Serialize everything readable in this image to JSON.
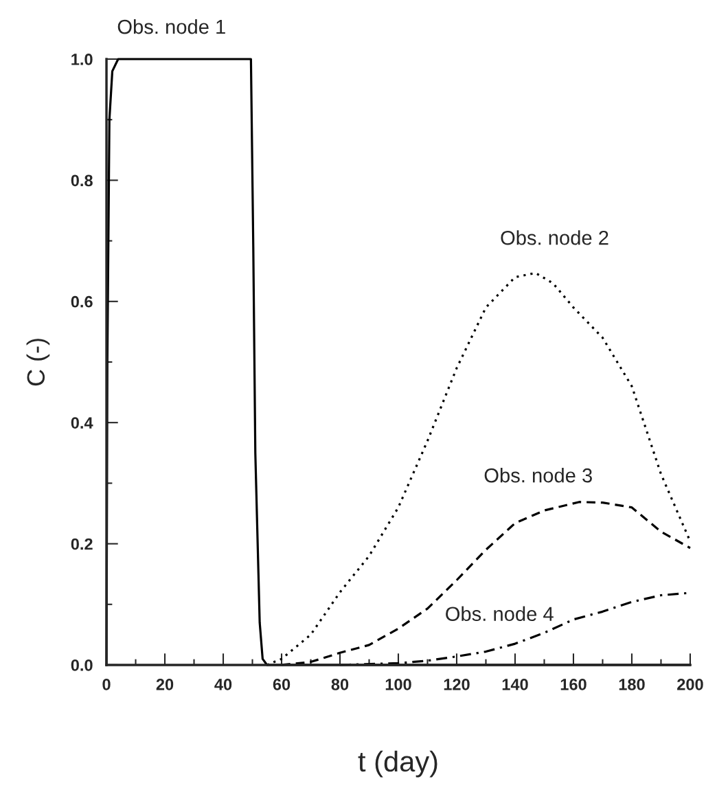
{
  "chart_data": {
    "type": "line",
    "xlabel": "t (day)",
    "ylabel": "C (-)",
    "xlim": [
      0,
      200
    ],
    "ylim": [
      0,
      1.0
    ],
    "xticks": [
      0,
      {
        "value": 10,
        "label": null
      },
      20,
      {
        "value": 30,
        "label": null
      },
      40,
      {
        "value": 50,
        "label": null
      },
      60,
      {
        "value": 70,
        "label": null
      },
      80,
      {
        "value": 90,
        "label": null
      },
      100,
      {
        "value": 110,
        "label": null
      },
      120,
      {
        "value": 130,
        "label": null
      },
      140,
      {
        "value": 150,
        "label": null
      },
      160,
      {
        "value": 170,
        "label": null
      },
      180,
      {
        "value": 190,
        "label": null
      },
      200
    ],
    "yticks": [
      {
        "value": 0,
        "label": "0.0"
      },
      {
        "value": 0.1,
        "label": null
      },
      0.2,
      {
        "value": 0.3,
        "label": null
      },
      0.4,
      {
        "value": 0.5,
        "label": null
      },
      0.6,
      {
        "value": 0.7,
        "label": null
      },
      0.8,
      {
        "value": 0.9,
        "label": null
      },
      {
        "value": 1.0,
        "label": "1.0"
      }
    ],
    "grid": false,
    "legend": false,
    "marker": "none",
    "series": [
      {
        "name": "Obs. node 1",
        "color": "#000000",
        "line_style": "solid",
        "x": [
          0,
          0.3,
          1,
          2,
          4,
          49.5,
          50.3,
          51,
          52.5,
          53.5,
          55,
          200
        ],
        "values": [
          0,
          0.5,
          0.9,
          0.98,
          1.0,
          1.0,
          0.69,
          0.35,
          0.07,
          0.01,
          0,
          0
        ]
      },
      {
        "name": "Obs. node 2",
        "color": "#000000",
        "line_style": "dotted",
        "x": [
          55,
          60,
          70,
          80,
          90,
          100,
          110,
          120,
          130,
          140,
          147,
          153,
          160,
          170,
          180,
          190,
          200
        ],
        "values": [
          0,
          0.01,
          0.05,
          0.12,
          0.18,
          0.26,
          0.37,
          0.49,
          0.59,
          0.64,
          0.647,
          0.63,
          0.59,
          0.54,
          0.46,
          0.315,
          0.204
        ]
      },
      {
        "name": "Obs. node 3",
        "color": "#000000",
        "line_style": "dashed",
        "x": [
          60,
          70,
          80,
          90,
          100,
          110,
          120,
          130,
          140,
          150,
          162,
          170,
          180,
          190,
          200
        ],
        "values": [
          0,
          0.005,
          0.02,
          0.033,
          0.06,
          0.093,
          0.14,
          0.19,
          0.234,
          0.255,
          0.269,
          0.268,
          0.26,
          0.22,
          0.193
        ]
      },
      {
        "name": "Obs. node 4",
        "color": "#000000",
        "line_style": "dashdot",
        "x": [
          80,
          100,
          110,
          120,
          130,
          140,
          150,
          160,
          170,
          180,
          190,
          200
        ],
        "values": [
          0,
          0.003,
          0.007,
          0.014,
          0.022,
          0.035,
          0.053,
          0.075,
          0.088,
          0.104,
          0.115,
          0.119
        ]
      }
    ]
  }
}
